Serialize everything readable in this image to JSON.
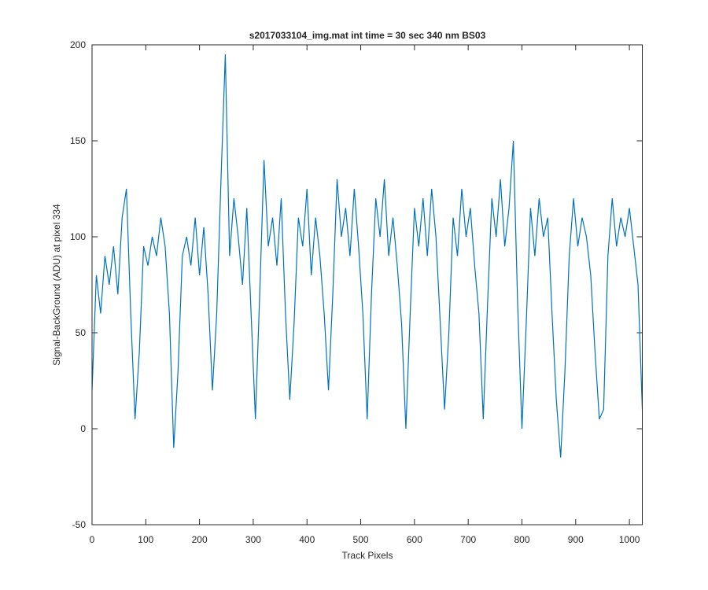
{
  "chart_data": {
    "type": "line",
    "title": "s2017033104_img.mat int time = 30 sec  340 nm BS03",
    "xlabel": "Track Pixels",
    "ylabel": "Signal-BackGround (ADU) at pixel 334",
    "x": [
      0,
      8,
      16,
      24,
      32,
      40,
      48,
      56,
      64,
      72,
      80,
      88,
      96,
      104,
      112,
      120,
      128,
      136,
      144,
      152,
      160,
      168,
      176,
      184,
      192,
      200,
      208,
      216,
      224,
      232,
      240,
      248,
      256,
      264,
      272,
      280,
      288,
      296,
      304,
      312,
      320,
      328,
      336,
      344,
      352,
      360,
      368,
      376,
      384,
      392,
      400,
      408,
      416,
      424,
      432,
      440,
      448,
      456,
      464,
      472,
      480,
      488,
      496,
      504,
      512,
      520,
      528,
      536,
      544,
      552,
      560,
      568,
      576,
      584,
      592,
      600,
      608,
      616,
      624,
      632,
      640,
      648,
      656,
      664,
      672,
      680,
      688,
      696,
      704,
      712,
      720,
      728,
      736,
      744,
      752,
      760,
      768,
      776,
      784,
      792,
      800,
      808,
      816,
      824,
      832,
      840,
      848,
      856,
      864,
      872,
      880,
      888,
      896,
      904,
      912,
      920,
      928,
      936,
      944,
      952,
      960,
      968,
      976,
      984,
      992,
      1000,
      1008,
      1016,
      1024
    ],
    "series": [
      {
        "color": "#0072bd",
        "values": [
          20,
          80,
          60,
          90,
          75,
          95,
          70,
          110,
          125,
          60,
          5,
          40,
          95,
          85,
          100,
          90,
          110,
          95,
          60,
          -10,
          30,
          90,
          100,
          85,
          110,
          80,
          105,
          70,
          20,
          60,
          130,
          195,
          90,
          120,
          100,
          75,
          115,
          60,
          5,
          70,
          140,
          95,
          110,
          85,
          120,
          60,
          15,
          55,
          110,
          95,
          125,
          80,
          110,
          90,
          60,
          20,
          70,
          130,
          100,
          115,
          90,
          125,
          95,
          60,
          5,
          70,
          120,
          100,
          130,
          90,
          110,
          85,
          55,
          0,
          60,
          115,
          95,
          120,
          90,
          125,
          100,
          55,
          10,
          50,
          110,
          90,
          125,
          100,
          115,
          85,
          60,
          5,
          65,
          120,
          100,
          130,
          95,
          115,
          150,
          65,
          0,
          55,
          115,
          90,
          120,
          100,
          110,
          60,
          15,
          -15,
          30,
          90,
          120,
          95,
          110,
          100,
          80,
          40,
          5,
          10,
          90,
          120,
          95,
          110,
          100,
          115,
          95,
          75,
          10
        ]
      }
    ],
    "xlim": [
      0,
      1024
    ],
    "ylim": [
      -50,
      200
    ],
    "xticks": [
      0,
      100,
      200,
      300,
      400,
      500,
      600,
      700,
      800,
      900,
      1000
    ],
    "yticks": [
      -50,
      0,
      50,
      100,
      150,
      200
    ],
    "grid": false
  }
}
